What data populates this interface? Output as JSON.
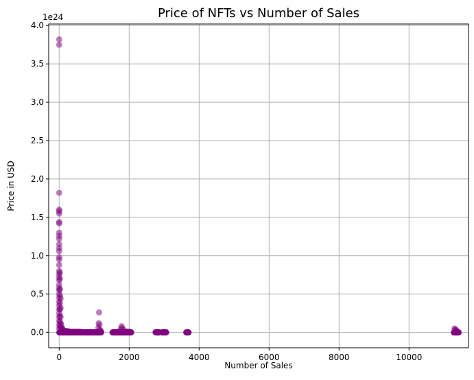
{
  "chart_data": {
    "type": "scatter",
    "title": "Price of NFTs vs Number of Sales",
    "xlabel": "Number of Sales",
    "ylabel": "Price in USD",
    "y_offset_label": "1e24",
    "xlim": [
      -300,
      11700
    ],
    "ylim": [
      -0.2,
      4.02
    ],
    "x_ticks": [
      0,
      2000,
      4000,
      6000,
      8000,
      10000
    ],
    "x_tick_labels": [
      "0",
      "2000",
      "4000",
      "6000",
      "8000",
      "10000"
    ],
    "y_ticks": [
      0.0,
      0.5,
      1.0,
      1.5,
      2.0,
      2.5,
      3.0,
      3.5,
      4.0
    ],
    "y_tick_labels": [
      "0.0",
      "0.5",
      "1.0",
      "1.5",
      "2.0",
      "2.5",
      "3.0",
      "3.5",
      "4.0"
    ],
    "grid": true,
    "marker_color": "#800080",
    "marker_alpha": 0.5,
    "series": [
      {
        "points": [
          [
            0,
            3.82
          ],
          [
            0,
            3.75
          ],
          [
            0,
            1.82
          ],
          [
            0,
            1.6
          ],
          [
            0,
            1.58
          ],
          [
            0,
            1.55
          ],
          [
            0,
            1.44
          ],
          [
            0,
            1.42
          ],
          [
            0,
            1.3
          ],
          [
            0,
            1.26
          ],
          [
            0,
            1.22
          ],
          [
            0,
            1.15
          ],
          [
            0,
            1.1
          ],
          [
            0,
            1.06
          ],
          [
            0,
            0.98
          ],
          [
            0,
            0.95
          ],
          [
            0,
            0.88
          ],
          [
            0,
            0.8
          ],
          [
            0,
            0.76
          ],
          [
            0,
            0.72
          ],
          [
            0,
            0.68
          ],
          [
            0,
            0.62
          ],
          [
            0,
            0.58
          ],
          [
            0,
            0.55
          ],
          [
            0,
            0.5
          ],
          [
            0,
            0.45
          ],
          [
            0,
            0.4
          ],
          [
            0,
            0.35
          ],
          [
            0,
            0.3
          ],
          [
            0,
            0.25
          ],
          [
            0,
            0.2
          ],
          [
            0,
            0.15
          ],
          [
            0,
            0.1
          ],
          [
            0,
            0.05
          ],
          [
            20,
            0.78
          ],
          [
            20,
            0.7
          ],
          [
            20,
            0.56
          ],
          [
            20,
            0.48
          ],
          [
            20,
            0.38
          ],
          [
            20,
            0.3
          ],
          [
            20,
            0.22
          ],
          [
            20,
            0.14
          ],
          [
            20,
            0.08
          ],
          [
            40,
            0.44
          ],
          [
            40,
            0.32
          ],
          [
            40,
            0.2
          ],
          [
            40,
            0.12
          ],
          [
            40,
            0.06
          ],
          [
            60,
            0.1
          ],
          [
            60,
            0.05
          ],
          [
            80,
            0.06
          ],
          [
            100,
            0.04
          ],
          [
            120,
            0.03
          ],
          [
            150,
            0.02
          ],
          [
            200,
            0.02
          ],
          [
            250,
            0.02
          ],
          [
            300,
            0.01
          ],
          [
            350,
            0.01
          ],
          [
            400,
            0.01
          ],
          [
            450,
            0.01
          ],
          [
            500,
            0.01
          ],
          [
            550,
            0.01
          ],
          [
            600,
            0.01
          ],
          [
            650,
            0.005
          ],
          [
            700,
            0.005
          ],
          [
            800,
            0.005
          ],
          [
            900,
            0.005
          ],
          [
            1000,
            0.005
          ],
          [
            1140,
            0.26
          ],
          [
            1130,
            0.12
          ],
          [
            1150,
            0.1
          ],
          [
            1120,
            0.06
          ],
          [
            1160,
            0.04
          ],
          [
            1180,
            0.02
          ],
          [
            1200,
            0.01
          ],
          [
            1550,
            0.005
          ],
          [
            1600,
            0.005
          ],
          [
            1650,
            0.005
          ],
          [
            1700,
            0.01
          ],
          [
            1780,
            0.08
          ],
          [
            1800,
            0.06
          ],
          [
            1760,
            0.04
          ],
          [
            1850,
            0.03
          ],
          [
            1900,
            0.01
          ],
          [
            1950,
            0.01
          ],
          [
            2000,
            0.01
          ],
          [
            2050,
            0.005
          ],
          [
            2750,
            0.005
          ],
          [
            2800,
            0.005
          ],
          [
            2850,
            0.005
          ],
          [
            2950,
            0.005
          ],
          [
            3000,
            0.005
          ],
          [
            3050,
            0.005
          ],
          [
            3650,
            0.005
          ],
          [
            3680,
            0.005
          ],
          [
            11300,
            0.05
          ],
          [
            11320,
            0.04
          ],
          [
            11340,
            0.03
          ],
          [
            11360,
            0.02
          ],
          [
            11380,
            0.01
          ],
          [
            11300,
            0.005
          ],
          [
            11320,
            0.01
          ],
          [
            11400,
            0.005
          ]
        ]
      }
    ]
  }
}
